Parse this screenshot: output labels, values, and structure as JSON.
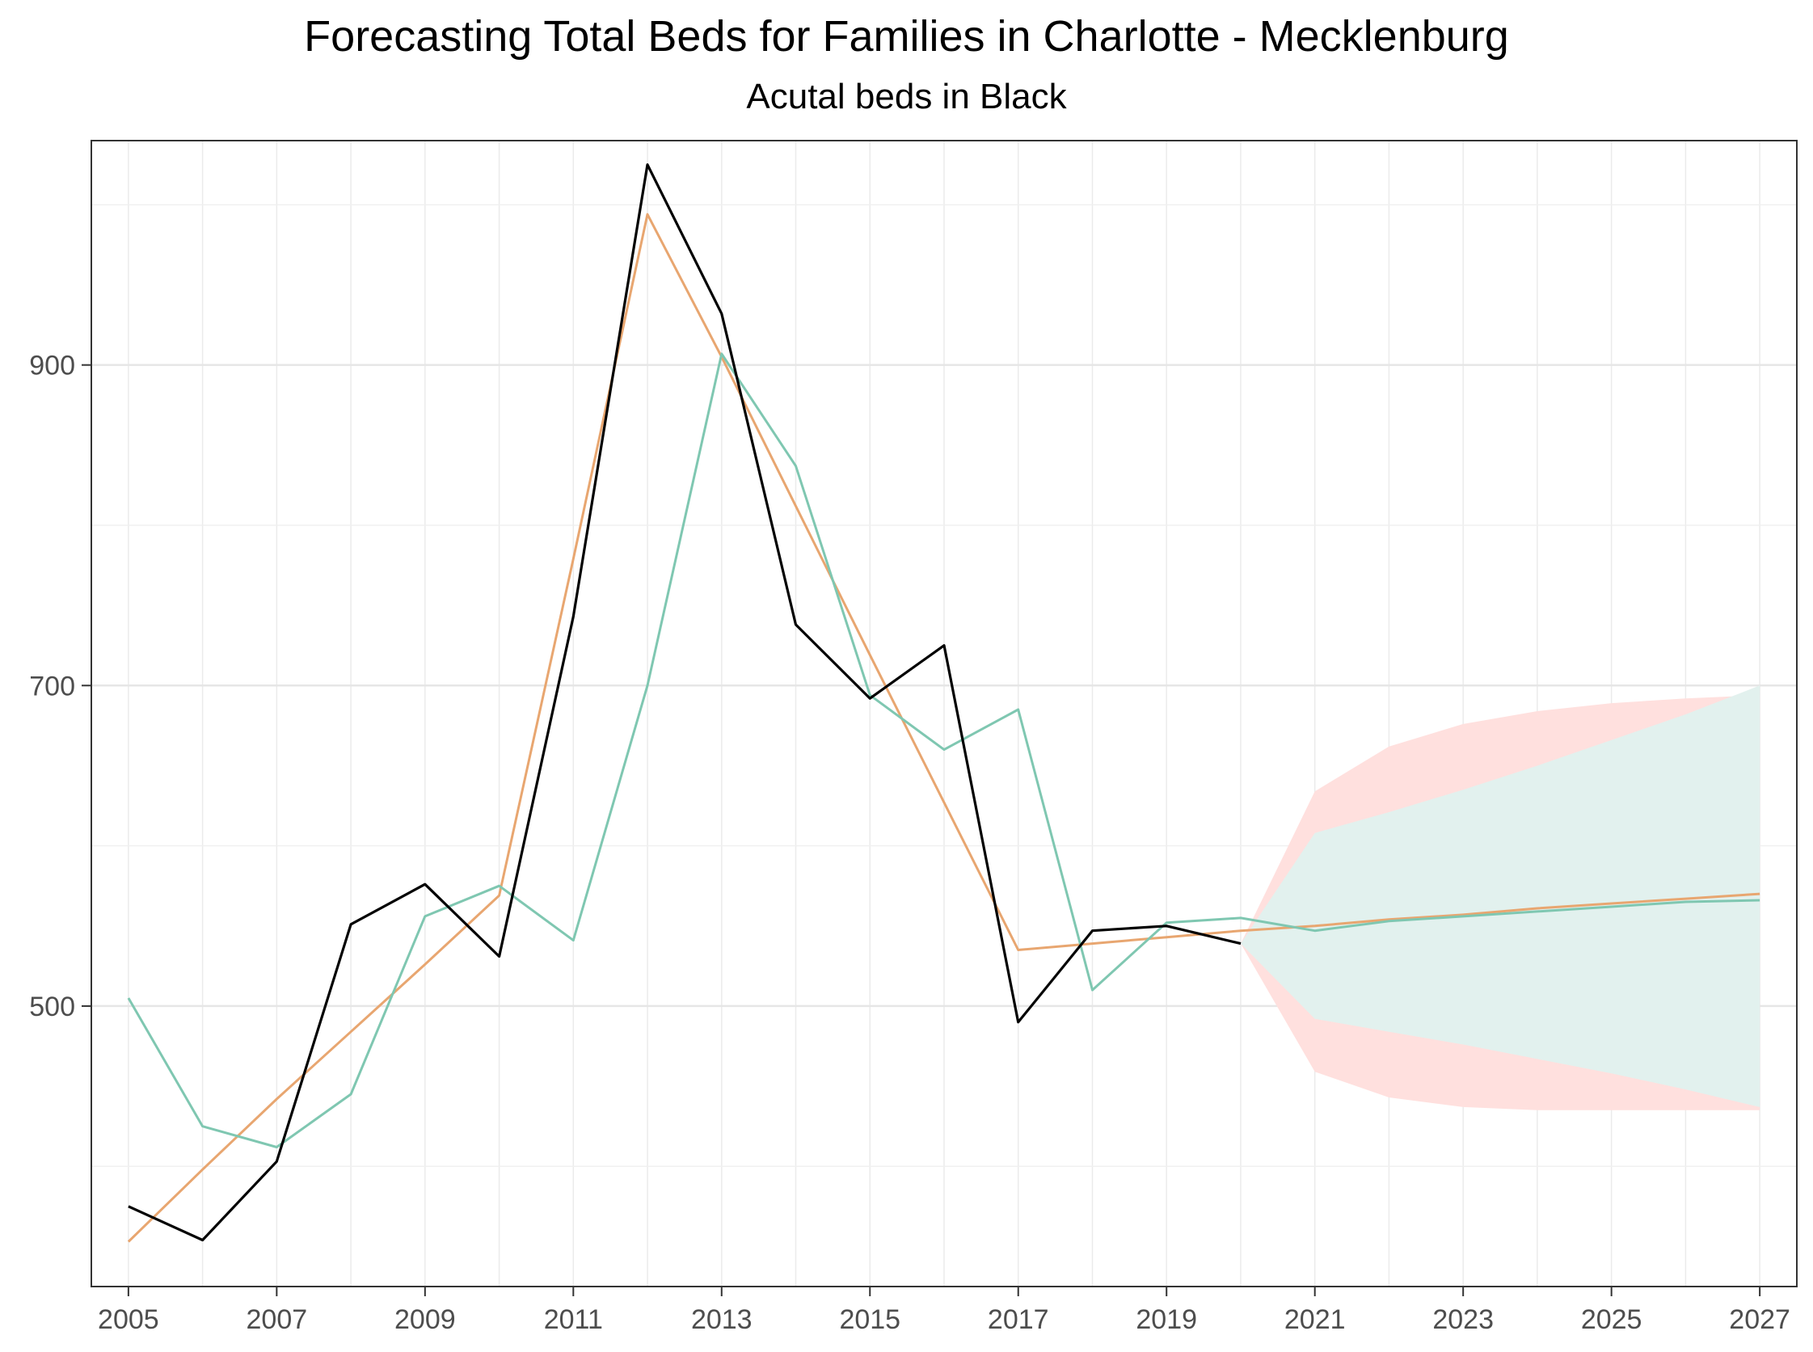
{
  "chart_data": {
    "type": "line",
    "title": "Forecasting Total Beds for Families in Charlotte - Mecklenburg",
    "subtitle": "Acutal beds in Black",
    "xlabel": "",
    "ylabel": "",
    "xlim": [
      2004.5,
      2027.5
    ],
    "ylim": [
      325,
      1040
    ],
    "x_ticks": [
      2005,
      2007,
      2009,
      2011,
      2013,
      2015,
      2017,
      2019,
      2021,
      2023,
      2025,
      2027
    ],
    "y_ticks": [
      500,
      700,
      900
    ],
    "grid": true,
    "legend": "none",
    "series": [
      {
        "color": "#000000",
        "x": [
          2005,
          2006,
          2007,
          2008,
          2009,
          2010,
          2011,
          2012,
          2013,
          2014,
          2015,
          2016,
          2017,
          2018,
          2019,
          2020
        ],
        "values": [
          375,
          354,
          403,
          551,
          576,
          531,
          743,
          1025,
          932,
          738,
          692,
          725,
          490,
          547,
          550,
          539
        ]
      },
      {
        "color": "#E8A670",
        "x": [
          2005,
          2006,
          2007,
          2008,
          2009,
          2010,
          2011,
          2012,
          2013,
          2014,
          2015,
          2016,
          2017,
          2018,
          2019,
          2020,
          2021,
          2022,
          2023,
          2024,
          2025,
          2026,
          2027
        ],
        "values": [
          353,
          398,
          442,
          484,
          526,
          569,
          779,
          994,
          905,
          812,
          719,
          627,
          535,
          539,
          543,
          547,
          550,
          554,
          557,
          561,
          564,
          567,
          570
        ]
      },
      {
        "color": "#7FC7B1",
        "x": [
          2005,
          2006,
          2007,
          2008,
          2009,
          2010,
          2011,
          2012,
          2013,
          2014,
          2015,
          2016,
          2017,
          2018,
          2019,
          2020,
          2021,
          2022,
          2023,
          2024,
          2025,
          2026,
          2027
        ],
        "values": [
          505,
          425,
          412,
          445,
          556,
          575,
          541,
          700,
          907,
          837,
          694,
          660,
          685,
          510,
          552,
          555,
          547,
          553,
          556,
          559,
          562,
          565,
          566
        ]
      }
    ],
    "bands": [
      {
        "color": "#FFE0DE",
        "x": [
          2020,
          2021,
          2022,
          2023,
          2024,
          2025,
          2026,
          2027
        ],
        "lower": [
          539,
          459,
          443,
          437,
          435,
          435,
          435,
          435
        ],
        "upper": [
          539,
          634,
          662,
          676,
          684,
          689,
          692,
          694
        ]
      },
      {
        "color": "#E2F1EE",
        "x": [
          2020,
          2021,
          2022,
          2023,
          2024,
          2025,
          2026,
          2027
        ],
        "lower": [
          539,
          492,
          484,
          476,
          467,
          458,
          448,
          437
        ],
        "upper": [
          539,
          608,
          621,
          635,
          650,
          666,
          682,
          700
        ]
      }
    ]
  }
}
